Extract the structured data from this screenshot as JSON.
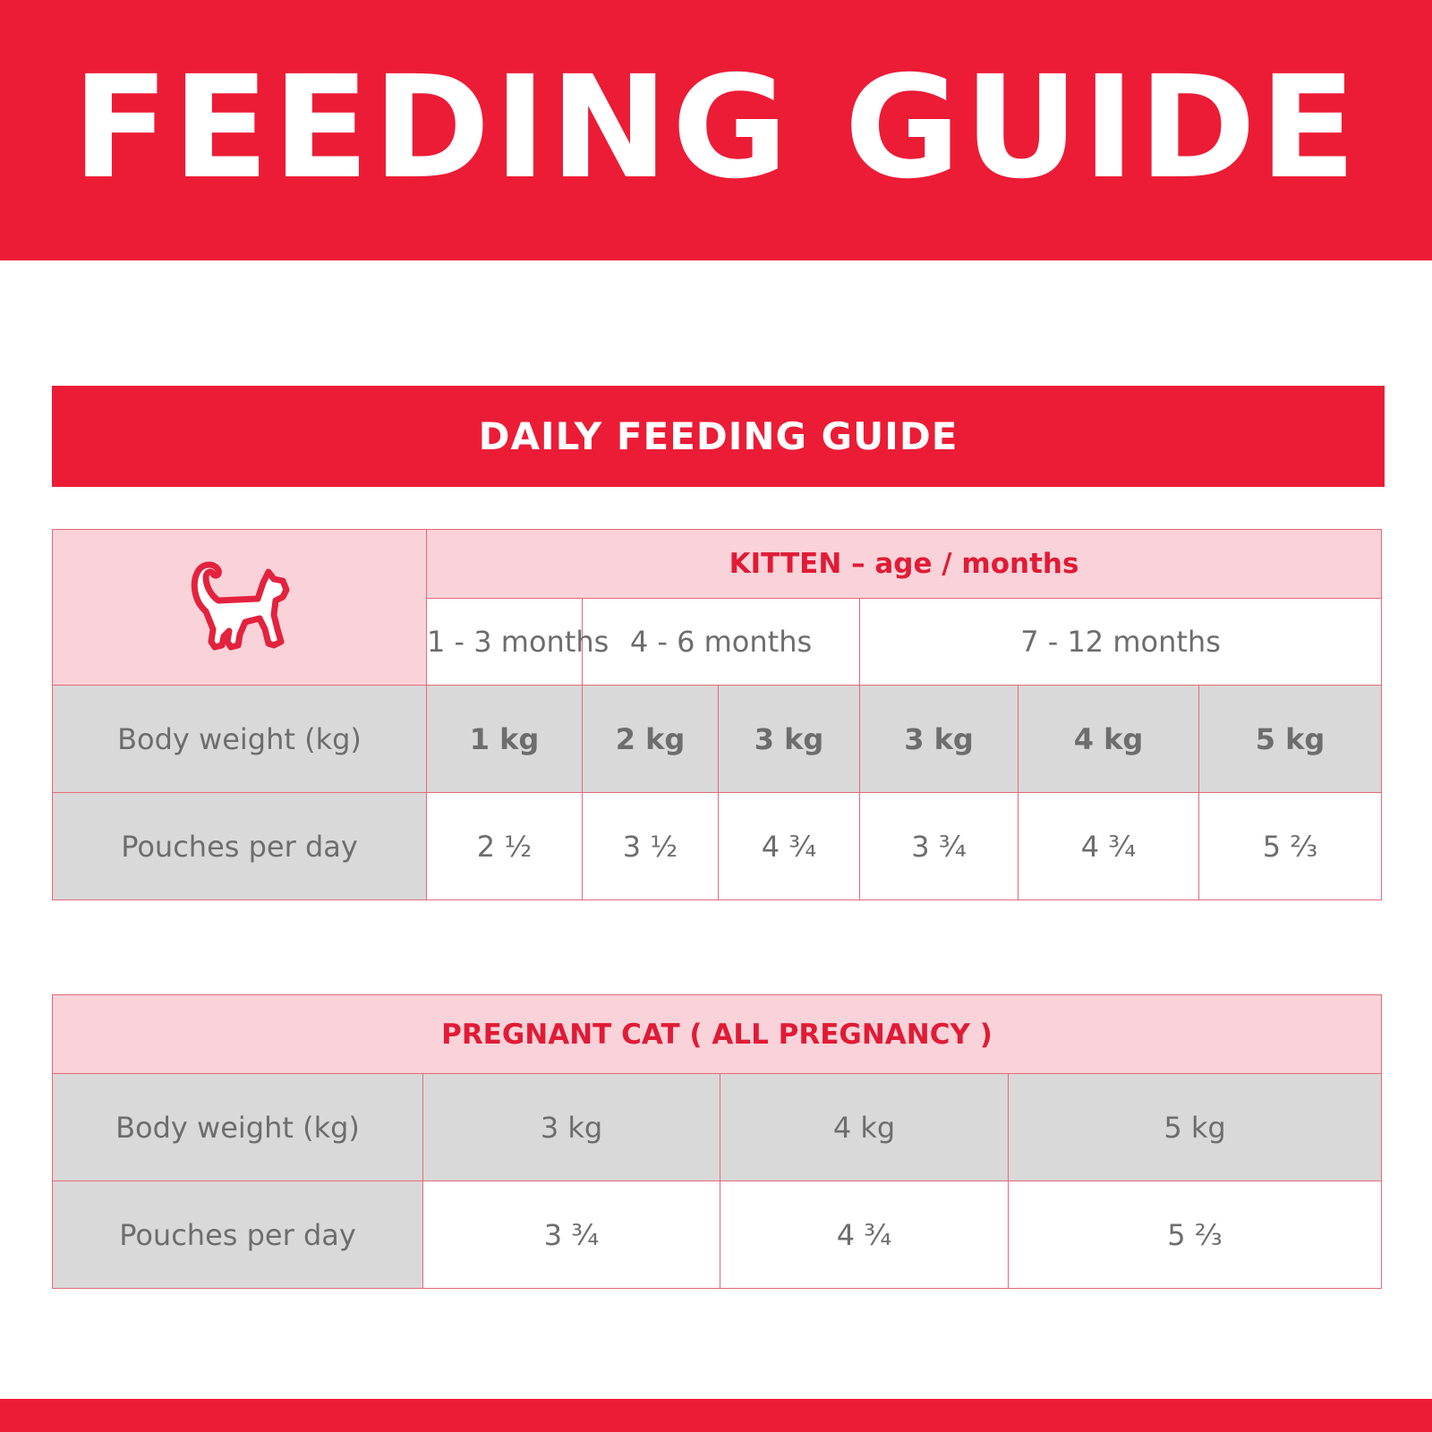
{
  "header": {
    "title": "FEEDING GUIDE"
  },
  "section": {
    "title": "DAILY FEEDING GUIDE"
  },
  "colors": {
    "brand_red": "#ec1c36",
    "pink_fill": "#f9d3d9",
    "grey_fill": "#d9d9d9",
    "text_grey": "#6d6d6d"
  },
  "kitten": {
    "icon": "cat-icon",
    "header": "KITTEN – age / months",
    "age_groups": [
      "1 - 3 months",
      "4 - 6 months",
      "7 - 12 months"
    ],
    "weight_label": "Body weight (kg)",
    "weights": [
      "1 kg",
      "2 kg",
      "3 kg",
      "3 kg",
      "4 kg",
      "5 kg"
    ],
    "pouches_label": "Pouches per day",
    "pouches": [
      "2 ½",
      "3 ½",
      "4 ¾",
      "3 ¾",
      "4 ¾",
      "5 ⅔"
    ]
  },
  "pregnant": {
    "header": "PREGNANT CAT ( ALL PREGNANCY )",
    "weight_label": "Body weight (kg)",
    "weights": [
      "3 kg",
      "4 kg",
      "5 kg"
    ],
    "pouches_label": "Pouches per day",
    "pouches": [
      "3 ¾",
      "4 ¾",
      "5 ⅔"
    ]
  }
}
